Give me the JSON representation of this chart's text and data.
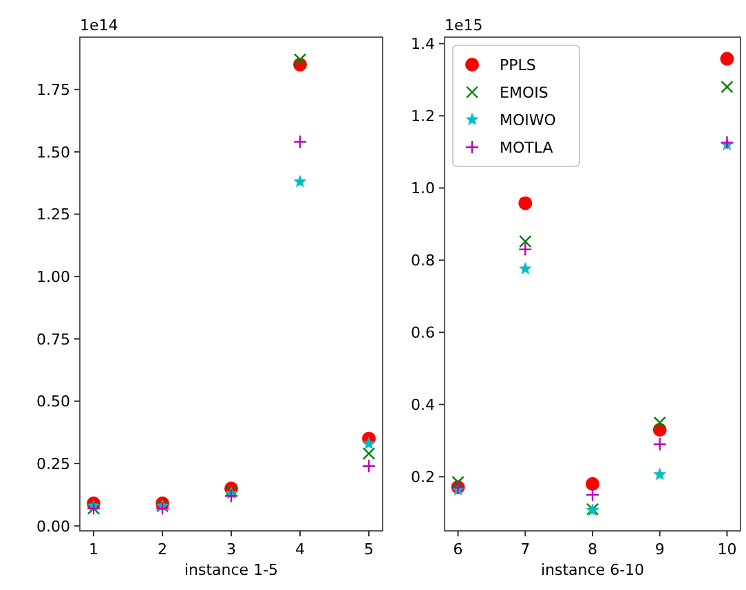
{
  "chart_data": [
    {
      "type": "scatter",
      "xlabel": "instance 1-5",
      "annotations": [
        "1e14"
      ],
      "x": [
        1,
        2,
        3,
        4,
        5
      ],
      "xlim": [
        0.8,
        5.2
      ],
      "xticks": [
        1,
        2,
        3,
        4,
        5
      ],
      "ylim": [
        -0.02,
        1.96
      ],
      "yticks": [
        {
          "value": 0,
          "label": "0.00"
        },
        {
          "value": 0.25,
          "label": "0.25"
        },
        {
          "value": 0.5,
          "label": "0.50"
        },
        {
          "value": 0.75,
          "label": "0.75"
        },
        {
          "value": 1,
          "label": "1.00"
        },
        {
          "value": 1.25,
          "label": "1.25"
        },
        {
          "value": 1.5,
          "label": "1.50"
        },
        {
          "value": 1.75,
          "label": "1.75"
        }
      ],
      "legend": false,
      "series": [
        {
          "color": "#ff0000",
          "marker": "circle",
          "values": [
            0.09,
            0.09,
            0.15,
            1.85,
            0.35
          ]
        },
        {
          "color": "#008000",
          "marker": "cross",
          "values": [
            0.07,
            0.08,
            0.14,
            1.87,
            0.29
          ]
        },
        {
          "color": "#00bfbf",
          "marker": "star",
          "values": [
            0.08,
            0.08,
            0.13,
            1.38,
            0.33
          ]
        },
        {
          "color": "#bf00bf",
          "marker": "plus",
          "values": [
            0.07,
            0.07,
            0.12,
            1.54,
            0.24
          ]
        }
      ]
    },
    {
      "type": "scatter",
      "xlabel": "instance 6-10",
      "annotations": [
        "1e15"
      ],
      "x": [
        6,
        7,
        8,
        9,
        10
      ],
      "xlim": [
        5.8,
        10.2
      ],
      "xticks": [
        6,
        7,
        8,
        9,
        10
      ],
      "ylim": [
        0.05,
        1.418
      ],
      "yticks": [
        0.2,
        0.4,
        0.6,
        0.8,
        {
          "value": 1,
          "label": "1.0"
        },
        1.2,
        1.4
      ],
      "legend": "top left",
      "series": [
        {
          "name": "PPLS",
          "color": "#ff0000",
          "marker": "circle",
          "values": [
            0.171,
            0.958,
            0.18,
            0.33,
            1.358
          ]
        },
        {
          "name": "EMOIS",
          "color": "#008000",
          "marker": "cross",
          "values": [
            0.185,
            0.852,
            0.11,
            0.35,
            1.28
          ]
        },
        {
          "name": "MOIWO",
          "color": "#00bfbf",
          "marker": "star",
          "values": [
            0.163,
            0.776,
            0.107,
            0.206,
            1.12
          ]
        },
        {
          "name": "MOTLA",
          "color": "#bf00bf",
          "marker": "plus",
          "values": [
            0.17,
            0.83,
            0.15,
            0.29,
            1.126
          ]
        }
      ]
    }
  ]
}
